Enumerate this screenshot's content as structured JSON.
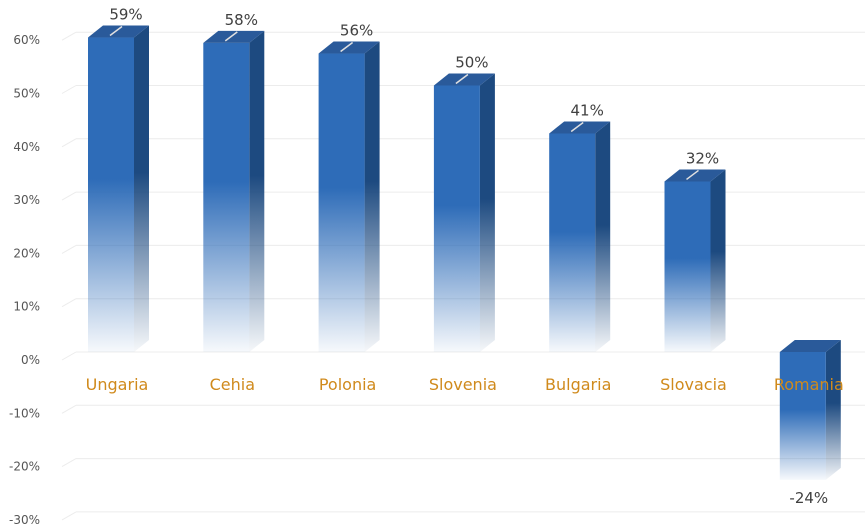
{
  "chart_data": {
    "type": "bar",
    "title": "",
    "xlabel": "",
    "ylabel": "",
    "categories": [
      "Ungaria",
      "Cehia",
      "Polonia",
      "Slovenia",
      "Bulgaria",
      "Slovacia",
      "Romania"
    ],
    "values": [
      59,
      58,
      56,
      50,
      41,
      32,
      -24
    ],
    "data_labels": [
      "59%",
      "58%",
      "56%",
      "50%",
      "41%",
      "32%",
      "-24%"
    ],
    "ylim": [
      -30,
      60
    ],
    "yticks": [
      -30,
      -20,
      -10,
      0,
      10,
      20,
      30,
      40,
      50,
      60
    ],
    "ytick_labels": [
      "-30%",
      "-20%",
      "-10%",
      "0%",
      "10%",
      "20%",
      "30%",
      "40%",
      "50%",
      "60%"
    ],
    "grid": true,
    "legend": "none",
    "style": "3d-column"
  },
  "colors": {
    "bar_front": "#2e6cb8",
    "bar_side": "#1d4a80",
    "bar_top": "#2a5a9a",
    "category_label": "#d08a1c",
    "gridline": "#ececec",
    "tick_label": "#555555",
    "data_label": "#404040"
  }
}
